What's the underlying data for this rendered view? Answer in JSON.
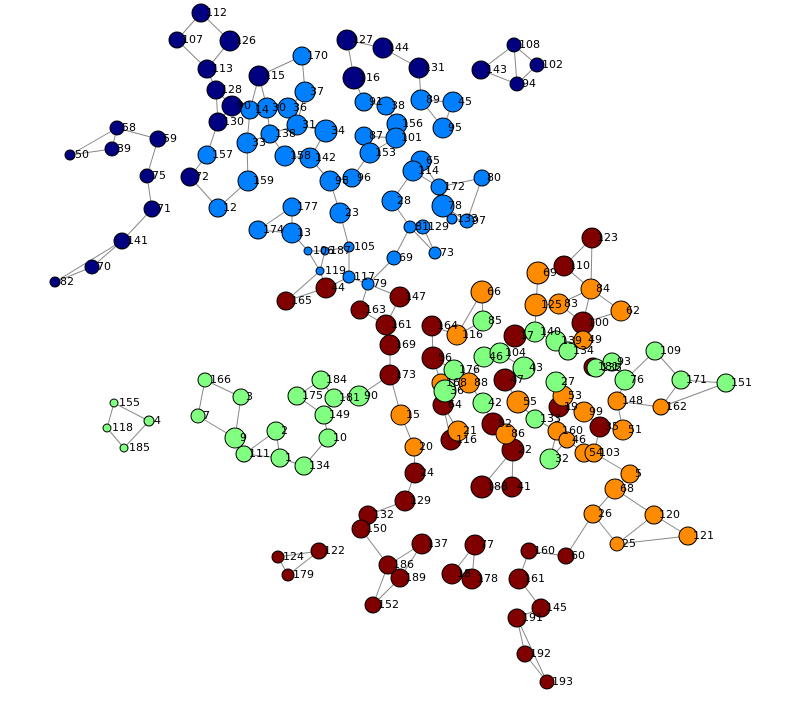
{
  "nodes": [
    {
      "label": "112",
      "color": "#000080"
    },
    {
      "label": "107",
      "color": "#000080"
    },
    {
      "label": "126",
      "color": "#000080"
    },
    {
      "label": "113",
      "color": "#000080"
    },
    {
      "label": "115",
      "color": "#000080"
    },
    {
      "label": "128",
      "color": "#000080"
    },
    {
      "label": "90",
      "color": "#000080"
    },
    {
      "label": "130",
      "color": "#000080"
    },
    {
      "label": "58",
      "color": "#000080"
    },
    {
      "label": "59",
      "color": "#000080"
    },
    {
      "label": "39",
      "color": "#000080"
    },
    {
      "label": "50",
      "color": "#000080"
    },
    {
      "label": "75",
      "color": "#000080"
    },
    {
      "label": "72",
      "color": "#000080"
    },
    {
      "label": "71",
      "color": "#000080"
    },
    {
      "label": "141",
      "color": "#000080"
    },
    {
      "label": "70",
      "color": "#000080"
    },
    {
      "label": "82",
      "color": "#000080"
    },
    {
      "label": "127",
      "color": "#000080"
    },
    {
      "label": "144",
      "color": "#000080"
    },
    {
      "label": "116",
      "color": "#000080"
    },
    {
      "label": "131",
      "color": "#000080"
    },
    {
      "label": "143",
      "color": "#000080"
    },
    {
      "label": "108",
      "color": "#000080"
    },
    {
      "label": "102",
      "color": "#000080"
    },
    {
      "label": "94",
      "color": "#000080"
    },
    {
      "label": "170",
      "color": "#0080ff"
    },
    {
      "label": "37",
      "color": "#0080ff"
    },
    {
      "label": "14",
      "color": "#0080ff"
    },
    {
      "label": "30",
      "color": "#0080ff"
    },
    {
      "label": "36",
      "color": "#0080ff"
    },
    {
      "label": "33",
      "color": "#0080ff"
    },
    {
      "label": "138",
      "color": "#0080ff"
    },
    {
      "label": "31",
      "color": "#0080ff"
    },
    {
      "label": "34",
      "color": "#0080ff"
    },
    {
      "label": "158",
      "color": "#0080ff"
    },
    {
      "label": "142",
      "color": "#0080ff"
    },
    {
      "label": "157",
      "color": "#0080ff"
    },
    {
      "label": "159",
      "color": "#0080ff"
    },
    {
      "label": "12",
      "color": "#0080ff"
    },
    {
      "label": "177",
      "color": "#0080ff"
    },
    {
      "label": "174",
      "color": "#0080ff"
    },
    {
      "label": "13",
      "color": "#0080ff"
    },
    {
      "label": "98",
      "color": "#0080ff"
    },
    {
      "label": "96",
      "color": "#0080ff"
    },
    {
      "label": "23",
      "color": "#0080ff"
    },
    {
      "label": "91",
      "color": "#0080ff"
    },
    {
      "label": "38",
      "color": "#0080ff"
    },
    {
      "label": "89",
      "color": "#0080ff"
    },
    {
      "label": "45",
      "color": "#0080ff"
    },
    {
      "label": "95",
      "color": "#0080ff"
    },
    {
      "label": "156",
      "color": "#0080ff"
    },
    {
      "label": "87",
      "color": "#0080ff"
    },
    {
      "label": "101",
      "color": "#0080ff"
    },
    {
      "label": "153",
      "color": "#0080ff"
    },
    {
      "label": "65",
      "color": "#0080ff"
    },
    {
      "label": "114",
      "color": "#0080ff"
    },
    {
      "label": "172",
      "color": "#0080ff"
    },
    {
      "label": "80",
      "color": "#0080ff"
    },
    {
      "label": "28",
      "color": "#0080ff"
    },
    {
      "label": "78",
      "color": "#0080ff"
    },
    {
      "label": "133",
      "color": "#0080ff"
    },
    {
      "label": "97",
      "color": "#0080ff"
    },
    {
      "label": "81",
      "color": "#0080ff"
    },
    {
      "label": "129",
      "color": "#0080ff"
    },
    {
      "label": "73",
      "color": "#0080ff"
    },
    {
      "label": "69",
      "color": "#0080ff"
    },
    {
      "label": "105",
      "color": "#0080ff"
    },
    {
      "label": "106",
      "color": "#0080ff"
    },
    {
      "label": "187",
      "color": "#0080ff"
    },
    {
      "label": "119",
      "color": "#0080ff"
    },
    {
      "label": "117",
      "color": "#0080ff"
    },
    {
      "label": "79",
      "color": "#0080ff"
    },
    {
      "label": "123",
      "color": "#800000"
    },
    {
      "label": "110",
      "color": "#800000"
    },
    {
      "label": "165",
      "color": "#800000"
    },
    {
      "label": "44",
      "color": "#800000"
    },
    {
      "label": "147",
      "color": "#800000"
    },
    {
      "label": "163",
      "color": "#800000"
    },
    {
      "label": "161",
      "color": "#800000"
    },
    {
      "label": "164",
      "color": "#800000"
    },
    {
      "label": "169",
      "color": "#800000"
    },
    {
      "label": "56",
      "color": "#800000"
    },
    {
      "label": "173",
      "color": "#800000"
    },
    {
      "label": "100",
      "color": "#800000"
    },
    {
      "label": "17",
      "color": "#800000"
    },
    {
      "label": "64",
      "color": "#800000"
    },
    {
      "label": "116",
      "color": "#800000"
    },
    {
      "label": "52",
      "color": "#800000"
    },
    {
      "label": "22",
      "color": "#800000"
    },
    {
      "label": "24",
      "color": "#800000"
    },
    {
      "label": "129",
      "color": "#800000"
    },
    {
      "label": "188",
      "color": "#800000"
    },
    {
      "label": "41",
      "color": "#800000"
    },
    {
      "label": "132",
      "color": "#800000"
    },
    {
      "label": "150",
      "color": "#800000"
    },
    {
      "label": "122",
      "color": "#800000"
    },
    {
      "label": "124",
      "color": "#800000"
    },
    {
      "label": "179",
      "color": "#800000"
    },
    {
      "label": "137",
      "color": "#800000"
    },
    {
      "label": "186",
      "color": "#800000"
    },
    {
      "label": "189",
      "color": "#800000"
    },
    {
      "label": "152",
      "color": "#800000"
    },
    {
      "label": "77",
      "color": "#800000"
    },
    {
      "label": "178",
      "color": "#800000"
    },
    {
      "label": "18",
      "color": "#800000"
    },
    {
      "label": "161",
      "color": "#800000"
    },
    {
      "label": "160",
      "color": "#800000"
    },
    {
      "label": "60",
      "color": "#800000"
    },
    {
      "label": "145",
      "color": "#800000"
    },
    {
      "label": "191",
      "color": "#800000"
    },
    {
      "label": "192",
      "color": "#800000"
    },
    {
      "label": "193",
      "color": "#800000"
    },
    {
      "label": "19",
      "color": "#800000"
    },
    {
      "label": "35",
      "color": "#800000"
    },
    {
      "label": "47",
      "color": "#800000"
    },
    {
      "label": "181",
      "color": "#800000"
    },
    {
      "label": "66",
      "color": "#ff8c00"
    },
    {
      "label": "69",
      "color": "#ff8c00"
    },
    {
      "label": "125",
      "color": "#ff8c00"
    },
    {
      "label": "83",
      "color": "#ff8c00"
    },
    {
      "label": "84",
      "color": "#ff8c00"
    },
    {
      "label": "62",
      "color": "#ff8c00"
    },
    {
      "label": "116",
      "color": "#ff8c00"
    },
    {
      "label": "49",
      "color": "#ff8c00"
    },
    {
      "label": "168",
      "color": "#ff8c00"
    },
    {
      "label": "88",
      "color": "#ff8c00"
    },
    {
      "label": "15",
      "color": "#ff8c00"
    },
    {
      "label": "20",
      "color": "#ff8c00"
    },
    {
      "label": "21",
      "color": "#ff8c00"
    },
    {
      "label": "86",
      "color": "#ff8c00"
    },
    {
      "label": "53",
      "color": "#ff8c00"
    },
    {
      "label": "99",
      "color": "#ff8c00"
    },
    {
      "label": "148",
      "color": "#ff8c00"
    },
    {
      "label": "162",
      "color": "#ff8c00"
    },
    {
      "label": "160",
      "color": "#ff8c00"
    },
    {
      "label": "46",
      "color": "#ff8c00"
    },
    {
      "label": "54",
      "color": "#ff8c00"
    },
    {
      "label": "103",
      "color": "#ff8c00"
    },
    {
      "label": "51",
      "color": "#ff8c00"
    },
    {
      "label": "5",
      "color": "#ff8c00"
    },
    {
      "label": "68",
      "color": "#ff8c00"
    },
    {
      "label": "26",
      "color": "#ff8c00"
    },
    {
      "label": "120",
      "color": "#ff8c00"
    },
    {
      "label": "25",
      "color": "#ff8c00"
    },
    {
      "label": "121",
      "color": "#ff8c00"
    },
    {
      "label": "55",
      "color": "#ff8c00"
    },
    {
      "label": "166",
      "color": "#80ff80"
    },
    {
      "label": "155",
      "color": "#80ff80"
    },
    {
      "label": "118",
      "color": "#80ff80"
    },
    {
      "label": "185",
      "color": "#80ff80"
    },
    {
      "label": "4",
      "color": "#80ff80"
    },
    {
      "label": "7",
      "color": "#80ff80"
    },
    {
      "label": "3",
      "color": "#80ff80"
    },
    {
      "label": "175",
      "color": "#80ff80"
    },
    {
      "label": "184",
      "color": "#80ff80"
    },
    {
      "label": "181",
      "color": "#80ff80"
    },
    {
      "label": "149",
      "color": "#80ff80"
    },
    {
      "label": "90",
      "color": "#80ff80"
    },
    {
      "label": "2",
      "color": "#80ff80"
    },
    {
      "label": "10",
      "color": "#80ff80"
    },
    {
      "label": "9",
      "color": "#80ff80"
    },
    {
      "label": "111",
      "color": "#80ff80"
    },
    {
      "label": "1",
      "color": "#80ff80"
    },
    {
      "label": "134",
      "color": "#80ff80"
    },
    {
      "label": "85",
      "color": "#80ff80"
    },
    {
      "label": "140",
      "color": "#80ff80"
    },
    {
      "label": "139",
      "color": "#80ff80"
    },
    {
      "label": "134",
      "color": "#80ff80"
    },
    {
      "label": "46",
      "color": "#80ff80"
    },
    {
      "label": "104",
      "color": "#80ff80"
    },
    {
      "label": "43",
      "color": "#80ff80"
    },
    {
      "label": "176",
      "color": "#80ff80"
    },
    {
      "label": "36",
      "color": "#80ff80"
    },
    {
      "label": "42",
      "color": "#80ff80"
    },
    {
      "label": "27",
      "color": "#80ff80"
    },
    {
      "label": "135",
      "color": "#80ff80"
    },
    {
      "label": "93",
      "color": "#80ff80"
    },
    {
      "label": "76",
      "color": "#80ff80"
    },
    {
      "label": "109",
      "color": "#80ff80"
    },
    {
      "label": "171",
      "color": "#80ff80"
    },
    {
      "label": "151",
      "color": "#80ff80"
    },
    {
      "label": "133",
      "color": "#80ff80"
    },
    {
      "label": "32",
      "color": "#80ff80"
    }
  ]
}
